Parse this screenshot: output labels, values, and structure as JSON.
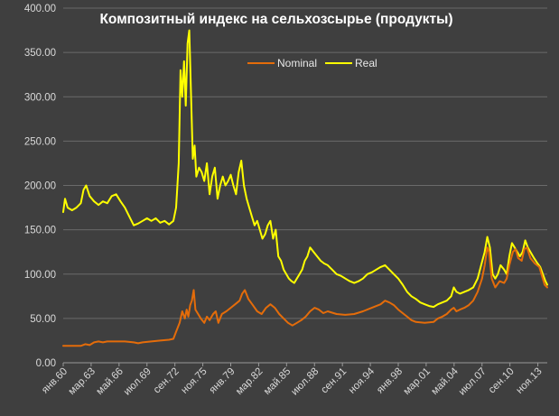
{
  "chart_data": {
    "type": "line",
    "title": "Композитный индекс на сельхозсырье (продукты)",
    "xlabel": "",
    "ylabel": "",
    "ylim": [
      0,
      400
    ],
    "yticks": [
      "0.00",
      "50.00",
      "100.00",
      "150.00",
      "200.00",
      "250.00",
      "300.00",
      "350.00",
      "400.00"
    ],
    "x_tick_labels": [
      "янв.60",
      "мар.63",
      "май.66",
      "июл.69",
      "сен.72",
      "ноя.75",
      "янв.79",
      "мар.82",
      "май.85",
      "июл.88",
      "сен.91",
      "ноя.94",
      "янв.98",
      "мар.01",
      "май.04",
      "июл.07",
      "сен.10",
      "ноя.13"
    ],
    "x_start": 1960.0,
    "x_end": 2014.9,
    "grid": true,
    "legend_position": "top-center",
    "series": [
      {
        "name": "Nominal",
        "color": "#e46c0a",
        "points": [
          [
            1960.0,
            19
          ],
          [
            1961.0,
            19
          ],
          [
            1962.0,
            19
          ],
          [
            1962.5,
            21
          ],
          [
            1963.0,
            20
          ],
          [
            1963.5,
            23
          ],
          [
            1964.0,
            24
          ],
          [
            1964.5,
            23
          ],
          [
            1965.0,
            24
          ],
          [
            1966.0,
            24
          ],
          [
            1967.0,
            24
          ],
          [
            1968.0,
            23
          ],
          [
            1968.5,
            22
          ],
          [
            1969.0,
            23
          ],
          [
            1970.0,
            24
          ],
          [
            1971.0,
            25
          ],
          [
            1972.0,
            26
          ],
          [
            1972.5,
            27
          ],
          [
            1972.8,
            35
          ],
          [
            1973.2,
            45
          ],
          [
            1973.5,
            58
          ],
          [
            1973.8,
            50
          ],
          [
            1974.0,
            60
          ],
          [
            1974.2,
            52
          ],
          [
            1974.4,
            65
          ],
          [
            1974.6,
            70
          ],
          [
            1974.8,
            82
          ],
          [
            1975.0,
            60
          ],
          [
            1975.3,
            55
          ],
          [
            1975.6,
            50
          ],
          [
            1976.0,
            45
          ],
          [
            1976.3,
            52
          ],
          [
            1976.6,
            48
          ],
          [
            1977.0,
            55
          ],
          [
            1977.3,
            58
          ],
          [
            1977.6,
            45
          ],
          [
            1978.0,
            55
          ],
          [
            1978.5,
            58
          ],
          [
            1979.0,
            62
          ],
          [
            1979.5,
            66
          ],
          [
            1980.0,
            70
          ],
          [
            1980.3,
            78
          ],
          [
            1980.6,
            82
          ],
          [
            1981.0,
            72
          ],
          [
            1981.5,
            65
          ],
          [
            1982.0,
            58
          ],
          [
            1982.5,
            55
          ],
          [
            1983.0,
            62
          ],
          [
            1983.5,
            66
          ],
          [
            1984.0,
            62
          ],
          [
            1984.5,
            55
          ],
          [
            1985.0,
            50
          ],
          [
            1985.5,
            45
          ],
          [
            1986.0,
            42
          ],
          [
            1986.5,
            45
          ],
          [
            1987.0,
            48
          ],
          [
            1987.5,
            52
          ],
          [
            1988.0,
            58
          ],
          [
            1988.5,
            62
          ],
          [
            1989.0,
            60
          ],
          [
            1989.5,
            56
          ],
          [
            1990.0,
            58
          ],
          [
            1991.0,
            55
          ],
          [
            1992.0,
            54
          ],
          [
            1993.0,
            55
          ],
          [
            1994.0,
            58
          ],
          [
            1995.0,
            62
          ],
          [
            1996.0,
            66
          ],
          [
            1996.5,
            70
          ],
          [
            1997.0,
            68
          ],
          [
            1997.5,
            65
          ],
          [
            1998.0,
            60
          ],
          [
            1998.5,
            56
          ],
          [
            1999.0,
            52
          ],
          [
            1999.5,
            48
          ],
          [
            2000.0,
            46
          ],
          [
            2001.0,
            45
          ],
          [
            2002.0,
            46
          ],
          [
            2002.5,
            50
          ],
          [
            2003.0,
            52
          ],
          [
            2003.5,
            55
          ],
          [
            2004.0,
            60
          ],
          [
            2004.3,
            62
          ],
          [
            2004.6,
            58
          ],
          [
            2005.0,
            60
          ],
          [
            2005.5,
            62
          ],
          [
            2006.0,
            65
          ],
          [
            2006.5,
            70
          ],
          [
            2007.0,
            80
          ],
          [
            2007.5,
            95
          ],
          [
            2007.8,
            110
          ],
          [
            2008.1,
            130
          ],
          [
            2008.3,
            125
          ],
          [
            2008.6,
            95
          ],
          [
            2009.0,
            85
          ],
          [
            2009.5,
            92
          ],
          [
            2010.0,
            90
          ],
          [
            2010.3,
            95
          ],
          [
            2010.6,
            110
          ],
          [
            2011.0,
            125
          ],
          [
            2011.3,
            128
          ],
          [
            2011.6,
            118
          ],
          [
            2012.0,
            115
          ],
          [
            2012.3,
            128
          ],
          [
            2012.6,
            130
          ],
          [
            2013.0,
            118
          ],
          [
            2013.5,
            112
          ],
          [
            2014.0,
            108
          ],
          [
            2014.3,
            98
          ],
          [
            2014.6,
            88
          ],
          [
            2014.9,
            85
          ]
        ]
      },
      {
        "name": "Real",
        "color": "#ffff00",
        "points": [
          [
            1960.0,
            170
          ],
          [
            1960.2,
            185
          ],
          [
            1960.5,
            175
          ],
          [
            1961.0,
            172
          ],
          [
            1961.5,
            175
          ],
          [
            1962.0,
            180
          ],
          [
            1962.3,
            195
          ],
          [
            1962.6,
            200
          ],
          [
            1963.0,
            188
          ],
          [
            1963.5,
            182
          ],
          [
            1964.0,
            178
          ],
          [
            1964.5,
            182
          ],
          [
            1965.0,
            180
          ],
          [
            1965.5,
            188
          ],
          [
            1966.0,
            190
          ],
          [
            1966.5,
            182
          ],
          [
            1967.0,
            175
          ],
          [
            1967.5,
            165
          ],
          [
            1968.0,
            155
          ],
          [
            1968.5,
            157
          ],
          [
            1969.0,
            160
          ],
          [
            1969.5,
            163
          ],
          [
            1970.0,
            160
          ],
          [
            1970.5,
            163
          ],
          [
            1971.0,
            158
          ],
          [
            1971.5,
            160
          ],
          [
            1972.0,
            156
          ],
          [
            1972.5,
            160
          ],
          [
            1972.8,
            175
          ],
          [
            1973.1,
            225
          ],
          [
            1973.3,
            330
          ],
          [
            1973.5,
            300
          ],
          [
            1973.7,
            340
          ],
          [
            1973.9,
            290
          ],
          [
            1974.1,
            360
          ],
          [
            1974.3,
            375
          ],
          [
            1974.5,
            300
          ],
          [
            1974.7,
            230
          ],
          [
            1974.9,
            245
          ],
          [
            1975.1,
            210
          ],
          [
            1975.4,
            220
          ],
          [
            1975.7,
            215
          ],
          [
            1976.0,
            205
          ],
          [
            1976.3,
            225
          ],
          [
            1976.6,
            190
          ],
          [
            1976.9,
            210
          ],
          [
            1977.2,
            220
          ],
          [
            1977.5,
            185
          ],
          [
            1977.8,
            200
          ],
          [
            1978.1,
            210
          ],
          [
            1978.4,
            200
          ],
          [
            1978.7,
            205
          ],
          [
            1979.0,
            212
          ],
          [
            1979.3,
            200
          ],
          [
            1979.6,
            190
          ],
          [
            1979.9,
            215
          ],
          [
            1980.2,
            228
          ],
          [
            1980.5,
            200
          ],
          [
            1980.8,
            185
          ],
          [
            1981.1,
            175
          ],
          [
            1981.4,
            165
          ],
          [
            1981.7,
            155
          ],
          [
            1982.0,
            160
          ],
          [
            1982.3,
            150
          ],
          [
            1982.6,
            140
          ],
          [
            1982.9,
            145
          ],
          [
            1983.2,
            155
          ],
          [
            1983.5,
            160
          ],
          [
            1983.8,
            140
          ],
          [
            1984.1,
            150
          ],
          [
            1984.4,
            120
          ],
          [
            1984.7,
            115
          ],
          [
            1985.0,
            105
          ],
          [
            1985.3,
            100
          ],
          [
            1985.6,
            95
          ],
          [
            1985.9,
            92
          ],
          [
            1986.2,
            90
          ],
          [
            1986.5,
            95
          ],
          [
            1986.8,
            100
          ],
          [
            1987.1,
            105
          ],
          [
            1987.4,
            115
          ],
          [
            1987.7,
            120
          ],
          [
            1988.0,
            130
          ],
          [
            1988.4,
            125
          ],
          [
            1988.8,
            120
          ],
          [
            1989.2,
            115
          ],
          [
            1989.6,
            112
          ],
          [
            1990.0,
            110
          ],
          [
            1990.5,
            105
          ],
          [
            1991.0,
            100
          ],
          [
            1991.5,
            98
          ],
          [
            1992.0,
            95
          ],
          [
            1992.5,
            92
          ],
          [
            1993.0,
            90
          ],
          [
            1993.5,
            92
          ],
          [
            1994.0,
            95
          ],
          [
            1994.5,
            100
          ],
          [
            1995.0,
            102
          ],
          [
            1995.5,
            105
          ],
          [
            1996.0,
            108
          ],
          [
            1996.5,
            110
          ],
          [
            1997.0,
            105
          ],
          [
            1997.5,
            100
          ],
          [
            1998.0,
            95
          ],
          [
            1998.5,
            88
          ],
          [
            1999.0,
            80
          ],
          [
            1999.5,
            75
          ],
          [
            2000.0,
            72
          ],
          [
            2000.5,
            68
          ],
          [
            2001.0,
            66
          ],
          [
            2001.5,
            64
          ],
          [
            2002.0,
            63
          ],
          [
            2002.5,
            66
          ],
          [
            2003.0,
            68
          ],
          [
            2003.5,
            70
          ],
          [
            2004.0,
            75
          ],
          [
            2004.3,
            85
          ],
          [
            2004.6,
            80
          ],
          [
            2005.0,
            78
          ],
          [
            2005.5,
            80
          ],
          [
            2006.0,
            82
          ],
          [
            2006.5,
            85
          ],
          [
            2007.0,
            95
          ],
          [
            2007.4,
            110
          ],
          [
            2007.8,
            125
          ],
          [
            2008.1,
            142
          ],
          [
            2008.4,
            130
          ],
          [
            2008.7,
            100
          ],
          [
            2009.0,
            95
          ],
          [
            2009.3,
            100
          ],
          [
            2009.6,
            110
          ],
          [
            2010.0,
            105
          ],
          [
            2010.3,
            100
          ],
          [
            2010.6,
            120
          ],
          [
            2010.9,
            135
          ],
          [
            2011.2,
            130
          ],
          [
            2011.5,
            125
          ],
          [
            2011.8,
            120
          ],
          [
            2012.1,
            125
          ],
          [
            2012.4,
            138
          ],
          [
            2012.7,
            130
          ],
          [
            2013.0,
            125
          ],
          [
            2013.4,
            118
          ],
          [
            2013.8,
            112
          ],
          [
            2014.1,
            108
          ],
          [
            2014.4,
            100
          ],
          [
            2014.7,
            92
          ],
          [
            2014.9,
            88
          ]
        ]
      }
    ]
  }
}
